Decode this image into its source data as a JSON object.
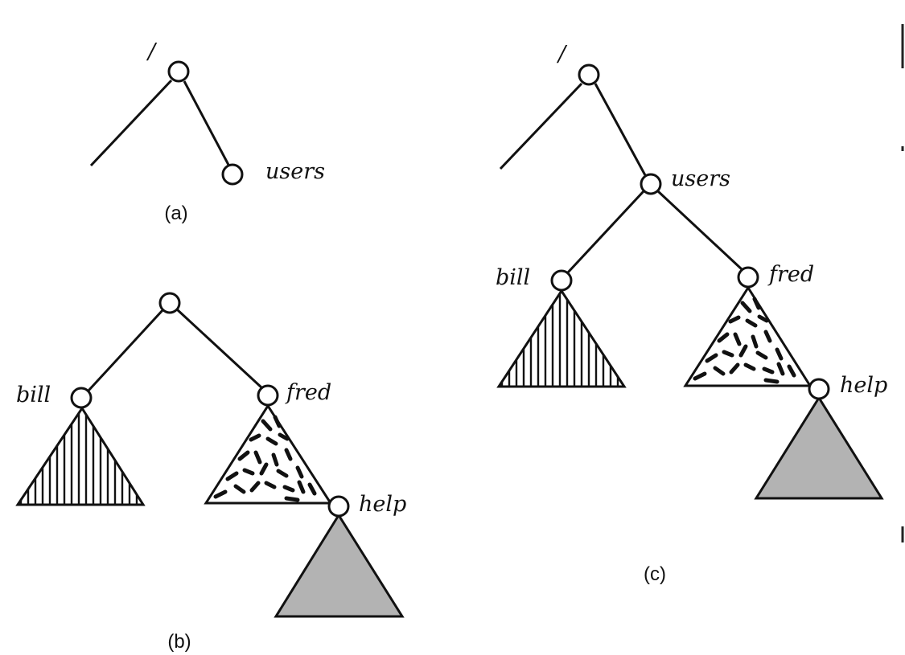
{
  "panels": {
    "a": {
      "caption": "(a)",
      "root_label": "/",
      "users_label": "users"
    },
    "b": {
      "caption": "(b)",
      "bill_label": "bill",
      "fred_label": "fred",
      "help_label": "help"
    },
    "c": {
      "caption": "(c)",
      "root_label": "/",
      "users_label": "users",
      "bill_label": "bill",
      "fred_label": "fred",
      "help_label": "help"
    }
  },
  "colors": {
    "line": "#111111",
    "node_fill": "#ffffff",
    "help_subtree_fill": "#b3b3b3",
    "background": "#ffffff"
  }
}
